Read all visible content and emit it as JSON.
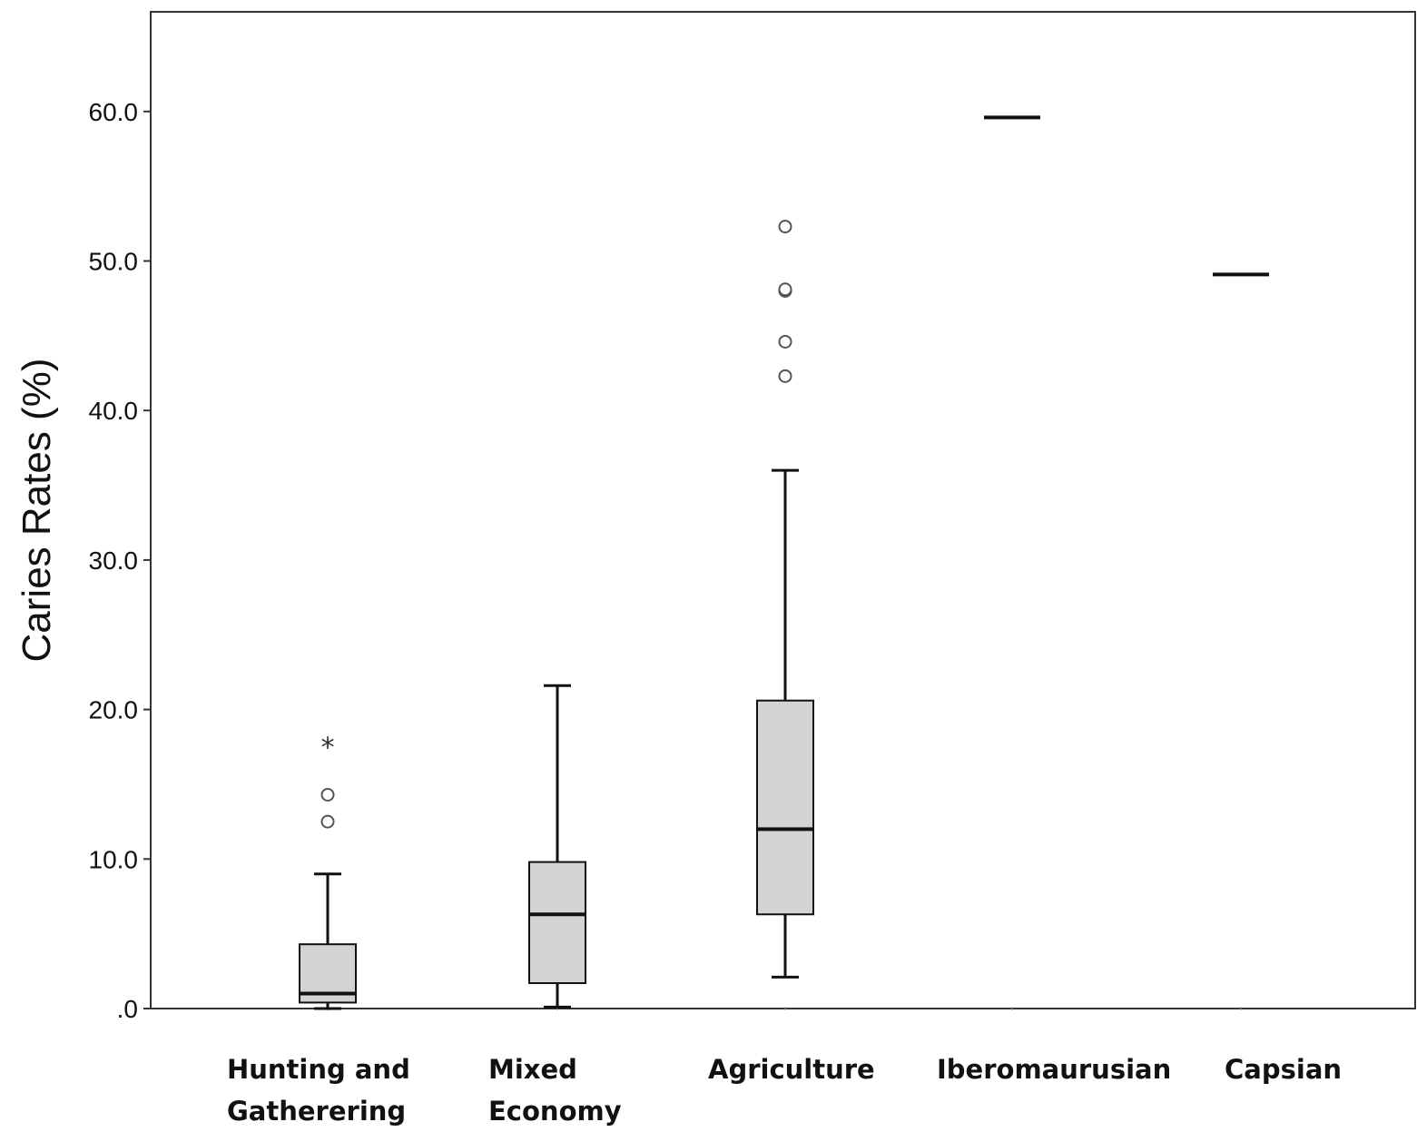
{
  "chart_data": {
    "type": "boxplot",
    "ylabel": "Caries Rates (%)",
    "ylim": [
      0,
      67
    ],
    "yticks": [
      0,
      10,
      20,
      30,
      40,
      50,
      60
    ],
    "ytick_labels": [
      ".0",
      "10.0",
      "20.0",
      "30.0",
      "40.0",
      "50.0",
      "60.0"
    ],
    "grid": false,
    "categories": [
      {
        "name": "Hunting and Gatherering",
        "label_lines": [
          "Hunting and",
          "Gatherering"
        ]
      },
      {
        "name": "Mixed Economy",
        "label_lines": [
          "Mixed",
          "Economy"
        ]
      },
      {
        "name": "Agriculture",
        "label_lines": [
          "Agriculture"
        ]
      },
      {
        "name": "Iberomaurusian",
        "label_lines": [
          "Iberomaurusian"
        ]
      },
      {
        "name": "Capsian",
        "label_lines": [
          "Capsian"
        ]
      }
    ],
    "series": [
      {
        "category": "Hunting and Gatherering",
        "min": 0,
        "q1": 0.4,
        "median": 1.0,
        "q3": 4.3,
        "max": 9.0,
        "outliers": [
          12.5,
          14.3
        ],
        "extremes": [
          17.7
        ]
      },
      {
        "category": "Mixed Economy",
        "min": 0.1,
        "q1": 1.7,
        "median": 6.3,
        "q3": 9.8,
        "max": 21.6,
        "outliers": [],
        "extremes": []
      },
      {
        "category": "Agriculture",
        "min": 2.1,
        "q1": 6.3,
        "median": 12.0,
        "q3": 20.6,
        "max": 36.0,
        "outliers": [
          42.3,
          44.6,
          48.0,
          48.1,
          52.3
        ],
        "extremes": []
      },
      {
        "category": "Iberomaurusian",
        "single_value": 59.6
      },
      {
        "category": "Capsian",
        "single_value": 49.1
      }
    ],
    "colors": {
      "box_fill": "#d3d3d3",
      "line": "#111111",
      "outlier": "#555555"
    }
  }
}
